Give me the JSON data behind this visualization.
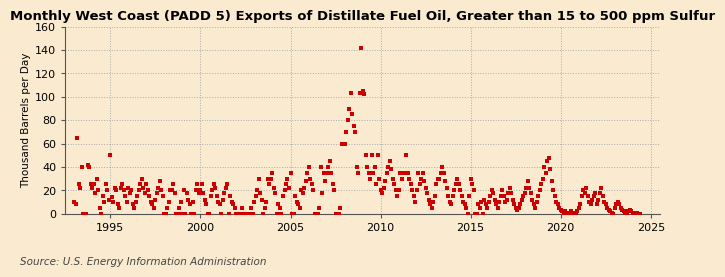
{
  "title": "Monthly West Coast (PADD 5) Exports of Distillate Fuel Oil, Greater than 15 to 500 ppm Sulfur",
  "ylabel": "Thousand Barrels per Day",
  "source": "Source: U.S. Energy Information Administration",
  "background_color": "#faebd0",
  "marker_color": "#cc0000",
  "marker": "s",
  "marker_size": 3.5,
  "xlim": [
    1992.5,
    2025.5
  ],
  "ylim": [
    0,
    160
  ],
  "yticks": [
    0,
    20,
    40,
    60,
    80,
    100,
    120,
    140,
    160
  ],
  "xticks": [
    1995,
    2000,
    2005,
    2010,
    2015,
    2020,
    2025
  ],
  "grid_color": "#aaaaaa",
  "grid_style": ":",
  "title_fontsize": 9.5,
  "label_fontsize": 7.5,
  "tick_fontsize": 8,
  "source_fontsize": 7.5,
  "data_points": [
    [
      1993.0,
      10
    ],
    [
      1993.083,
      8
    ],
    [
      1993.167,
      65
    ],
    [
      1993.25,
      25
    ],
    [
      1993.333,
      22
    ],
    [
      1993.417,
      40
    ],
    [
      1993.5,
      0
    ],
    [
      1993.583,
      0
    ],
    [
      1993.667,
      0
    ],
    [
      1993.75,
      42
    ],
    [
      1993.833,
      40
    ],
    [
      1993.917,
      25
    ],
    [
      1994.0,
      22
    ],
    [
      1994.083,
      25
    ],
    [
      1994.167,
      18
    ],
    [
      1994.25,
      30
    ],
    [
      1994.333,
      20
    ],
    [
      1994.417,
      5
    ],
    [
      1994.5,
      0
    ],
    [
      1994.583,
      15
    ],
    [
      1994.667,
      10
    ],
    [
      1994.75,
      25
    ],
    [
      1994.833,
      20
    ],
    [
      1994.917,
      12
    ],
    [
      1995.0,
      50
    ],
    [
      1995.083,
      14
    ],
    [
      1995.167,
      10
    ],
    [
      1995.25,
      22
    ],
    [
      1995.333,
      20
    ],
    [
      1995.417,
      8
    ],
    [
      1995.5,
      5
    ],
    [
      1995.583,
      22
    ],
    [
      1995.667,
      25
    ],
    [
      1995.75,
      20
    ],
    [
      1995.833,
      15
    ],
    [
      1995.917,
      10
    ],
    [
      1996.0,
      22
    ],
    [
      1996.083,
      18
    ],
    [
      1996.167,
      20
    ],
    [
      1996.25,
      8
    ],
    [
      1996.333,
      5
    ],
    [
      1996.417,
      10
    ],
    [
      1996.5,
      15
    ],
    [
      1996.583,
      20
    ],
    [
      1996.667,
      25
    ],
    [
      1996.75,
      30
    ],
    [
      1996.833,
      22
    ],
    [
      1996.917,
      18
    ],
    [
      1997.0,
      25
    ],
    [
      1997.083,
      20
    ],
    [
      1997.167,
      15
    ],
    [
      1997.25,
      10
    ],
    [
      1997.333,
      8
    ],
    [
      1997.417,
      5
    ],
    [
      1997.5,
      12
    ],
    [
      1997.583,
      18
    ],
    [
      1997.667,
      22
    ],
    [
      1997.75,
      28
    ],
    [
      1997.833,
      20
    ],
    [
      1997.917,
      15
    ],
    [
      1998.0,
      0
    ],
    [
      1998.083,
      0
    ],
    [
      1998.167,
      5
    ],
    [
      1998.25,
      10
    ],
    [
      1998.333,
      20
    ],
    [
      1998.417,
      20
    ],
    [
      1998.5,
      25
    ],
    [
      1998.583,
      18
    ],
    [
      1998.667,
      0
    ],
    [
      1998.75,
      0
    ],
    [
      1998.833,
      5
    ],
    [
      1998.917,
      10
    ],
    [
      1999.0,
      0
    ],
    [
      1999.083,
      20
    ],
    [
      1999.167,
      0
    ],
    [
      1999.25,
      18
    ],
    [
      1999.333,
      12
    ],
    [
      1999.417,
      8
    ],
    [
      1999.5,
      0
    ],
    [
      1999.583,
      10
    ],
    [
      1999.667,
      0
    ],
    [
      1999.75,
      20
    ],
    [
      1999.833,
      25
    ],
    [
      1999.917,
      18
    ],
    [
      2000.0,
      20
    ],
    [
      2000.083,
      25
    ],
    [
      2000.167,
      18
    ],
    [
      2000.25,
      12
    ],
    [
      2000.333,
      8
    ],
    [
      2000.417,
      0
    ],
    [
      2000.5,
      0
    ],
    [
      2000.583,
      15
    ],
    [
      2000.667,
      20
    ],
    [
      2000.75,
      25
    ],
    [
      2000.833,
      22
    ],
    [
      2000.917,
      15
    ],
    [
      2001.0,
      10
    ],
    [
      2001.083,
      8
    ],
    [
      2001.167,
      0
    ],
    [
      2001.25,
      12
    ],
    [
      2001.333,
      18
    ],
    [
      2001.417,
      22
    ],
    [
      2001.5,
      25
    ],
    [
      2001.583,
      0
    ],
    [
      2001.667,
      15
    ],
    [
      2001.75,
      10
    ],
    [
      2001.833,
      8
    ],
    [
      2001.917,
      5
    ],
    [
      2002.0,
      0
    ],
    [
      2002.083,
      0
    ],
    [
      2002.167,
      0
    ],
    [
      2002.25,
      0
    ],
    [
      2002.333,
      5
    ],
    [
      2002.417,
      0
    ],
    [
      2002.5,
      0
    ],
    [
      2002.583,
      0
    ],
    [
      2002.667,
      0
    ],
    [
      2002.75,
      0
    ],
    [
      2002.833,
      5
    ],
    [
      2002.917,
      0
    ],
    [
      2003.0,
      10
    ],
    [
      2003.083,
      15
    ],
    [
      2003.167,
      20
    ],
    [
      2003.25,
      30
    ],
    [
      2003.333,
      18
    ],
    [
      2003.417,
      12
    ],
    [
      2003.5,
      0
    ],
    [
      2003.583,
      5
    ],
    [
      2003.667,
      10
    ],
    [
      2003.75,
      30
    ],
    [
      2003.833,
      25
    ],
    [
      2003.917,
      30
    ],
    [
      2004.0,
      35
    ],
    [
      2004.083,
      22
    ],
    [
      2004.167,
      18
    ],
    [
      2004.25,
      0
    ],
    [
      2004.333,
      8
    ],
    [
      2004.417,
      5
    ],
    [
      2004.5,
      0
    ],
    [
      2004.583,
      15
    ],
    [
      2004.667,
      20
    ],
    [
      2004.75,
      25
    ],
    [
      2004.833,
      30
    ],
    [
      2004.917,
      22
    ],
    [
      2005.0,
      35
    ],
    [
      2005.083,
      0
    ],
    [
      2005.167,
      0
    ],
    [
      2005.25,
      15
    ],
    [
      2005.333,
      10
    ],
    [
      2005.417,
      8
    ],
    [
      2005.5,
      5
    ],
    [
      2005.583,
      20
    ],
    [
      2005.667,
      18
    ],
    [
      2005.75,
      22
    ],
    [
      2005.833,
      28
    ],
    [
      2005.917,
      35
    ],
    [
      2006.0,
      40
    ],
    [
      2006.083,
      30
    ],
    [
      2006.167,
      25
    ],
    [
      2006.25,
      20
    ],
    [
      2006.333,
      0
    ],
    [
      2006.417,
      0
    ],
    [
      2006.5,
      0
    ],
    [
      2006.583,
      5
    ],
    [
      2006.667,
      40
    ],
    [
      2006.75,
      18
    ],
    [
      2006.833,
      35
    ],
    [
      2006.917,
      28
    ],
    [
      2007.0,
      35
    ],
    [
      2007.083,
      40
    ],
    [
      2007.167,
      45
    ],
    [
      2007.25,
      35
    ],
    [
      2007.333,
      25
    ],
    [
      2007.417,
      20
    ],
    [
      2007.5,
      0
    ],
    [
      2007.583,
      0
    ],
    [
      2007.667,
      0
    ],
    [
      2007.75,
      5
    ],
    [
      2007.833,
      60
    ],
    [
      2007.917,
      60
    ],
    [
      2008.0,
      60
    ],
    [
      2008.083,
      70
    ],
    [
      2008.167,
      80
    ],
    [
      2008.25,
      90
    ],
    [
      2008.333,
      103
    ],
    [
      2008.417,
      85
    ],
    [
      2008.5,
      75
    ],
    [
      2008.583,
      70
    ],
    [
      2008.667,
      40
    ],
    [
      2008.75,
      35
    ],
    [
      2008.833,
      103
    ],
    [
      2008.917,
      142
    ],
    [
      2009.0,
      105
    ],
    [
      2009.083,
      102
    ],
    [
      2009.167,
      50
    ],
    [
      2009.25,
      40
    ],
    [
      2009.333,
      35
    ],
    [
      2009.417,
      30
    ],
    [
      2009.5,
      50
    ],
    [
      2009.583,
      35
    ],
    [
      2009.667,
      40
    ],
    [
      2009.75,
      25
    ],
    [
      2009.833,
      50
    ],
    [
      2009.917,
      30
    ],
    [
      2010.0,
      20
    ],
    [
      2010.083,
      18
    ],
    [
      2010.167,
      22
    ],
    [
      2010.25,
      28
    ],
    [
      2010.333,
      35
    ],
    [
      2010.417,
      40
    ],
    [
      2010.5,
      45
    ],
    [
      2010.583,
      38
    ],
    [
      2010.667,
      30
    ],
    [
      2010.75,
      25
    ],
    [
      2010.833,
      20
    ],
    [
      2010.917,
      15
    ],
    [
      2011.0,
      20
    ],
    [
      2011.083,
      35
    ],
    [
      2011.167,
      30
    ],
    [
      2011.25,
      35
    ],
    [
      2011.333,
      35
    ],
    [
      2011.417,
      50
    ],
    [
      2011.5,
      35
    ],
    [
      2011.583,
      30
    ],
    [
      2011.667,
      25
    ],
    [
      2011.75,
      20
    ],
    [
      2011.833,
      15
    ],
    [
      2011.917,
      10
    ],
    [
      2012.0,
      20
    ],
    [
      2012.083,
      35
    ],
    [
      2012.167,
      25
    ],
    [
      2012.25,
      30
    ],
    [
      2012.333,
      35
    ],
    [
      2012.417,
      28
    ],
    [
      2012.5,
      22
    ],
    [
      2012.583,
      18
    ],
    [
      2012.667,
      12
    ],
    [
      2012.75,
      8
    ],
    [
      2012.833,
      5
    ],
    [
      2012.917,
      10
    ],
    [
      2013.0,
      15
    ],
    [
      2013.083,
      25
    ],
    [
      2013.167,
      30
    ],
    [
      2013.25,
      30
    ],
    [
      2013.333,
      35
    ],
    [
      2013.417,
      40
    ],
    [
      2013.5,
      35
    ],
    [
      2013.583,
      28
    ],
    [
      2013.667,
      22
    ],
    [
      2013.75,
      15
    ],
    [
      2013.833,
      10
    ],
    [
      2013.917,
      8
    ],
    [
      2014.0,
      15
    ],
    [
      2014.083,
      20
    ],
    [
      2014.167,
      25
    ],
    [
      2014.25,
      30
    ],
    [
      2014.333,
      25
    ],
    [
      2014.417,
      20
    ],
    [
      2014.5,
      15
    ],
    [
      2014.583,
      10
    ],
    [
      2014.667,
      8
    ],
    [
      2014.75,
      5
    ],
    [
      2014.833,
      0
    ],
    [
      2014.917,
      15
    ],
    [
      2015.0,
      30
    ],
    [
      2015.083,
      25
    ],
    [
      2015.167,
      20
    ],
    [
      2015.25,
      0
    ],
    [
      2015.333,
      0
    ],
    [
      2015.417,
      8
    ],
    [
      2015.5,
      5
    ],
    [
      2015.583,
      10
    ],
    [
      2015.667,
      0
    ],
    [
      2015.75,
      12
    ],
    [
      2015.833,
      8
    ],
    [
      2015.917,
      5
    ],
    [
      2016.0,
      10
    ],
    [
      2016.083,
      15
    ],
    [
      2016.167,
      20
    ],
    [
      2016.25,
      18
    ],
    [
      2016.333,
      12
    ],
    [
      2016.417,
      8
    ],
    [
      2016.5,
      5
    ],
    [
      2016.583,
      10
    ],
    [
      2016.667,
      15
    ],
    [
      2016.75,
      20
    ],
    [
      2016.833,
      15
    ],
    [
      2016.917,
      10
    ],
    [
      2017.0,
      12
    ],
    [
      2017.083,
      18
    ],
    [
      2017.167,
      22
    ],
    [
      2017.25,
      18
    ],
    [
      2017.333,
      12
    ],
    [
      2017.417,
      8
    ],
    [
      2017.5,
      5
    ],
    [
      2017.583,
      3
    ],
    [
      2017.667,
      5
    ],
    [
      2017.75,
      8
    ],
    [
      2017.833,
      12
    ],
    [
      2017.917,
      15
    ],
    [
      2018.0,
      18
    ],
    [
      2018.083,
      22
    ],
    [
      2018.167,
      28
    ],
    [
      2018.25,
      22
    ],
    [
      2018.333,
      18
    ],
    [
      2018.417,
      12
    ],
    [
      2018.5,
      8
    ],
    [
      2018.583,
      5
    ],
    [
      2018.667,
      10
    ],
    [
      2018.75,
      15
    ],
    [
      2018.833,
      20
    ],
    [
      2018.917,
      25
    ],
    [
      2019.0,
      30
    ],
    [
      2019.083,
      40
    ],
    [
      2019.167,
      35
    ],
    [
      2019.25,
      45
    ],
    [
      2019.333,
      48
    ],
    [
      2019.417,
      38
    ],
    [
      2019.5,
      28
    ],
    [
      2019.583,
      20
    ],
    [
      2019.667,
      15
    ],
    [
      2019.75,
      10
    ],
    [
      2019.833,
      8
    ],
    [
      2019.917,
      5
    ],
    [
      2020.0,
      3
    ],
    [
      2020.083,
      2
    ],
    [
      2020.167,
      1
    ],
    [
      2020.25,
      2
    ],
    [
      2020.333,
      1
    ],
    [
      2020.417,
      0
    ],
    [
      2020.5,
      1
    ],
    [
      2020.583,
      2
    ],
    [
      2020.667,
      1
    ],
    [
      2020.75,
      0
    ],
    [
      2020.833,
      1
    ],
    [
      2020.917,
      2
    ],
    [
      2021.0,
      5
    ],
    [
      2021.083,
      8
    ],
    [
      2021.167,
      15
    ],
    [
      2021.25,
      20
    ],
    [
      2021.333,
      18
    ],
    [
      2021.417,
      22
    ],
    [
      2021.5,
      15
    ],
    [
      2021.583,
      10
    ],
    [
      2021.667,
      8
    ],
    [
      2021.75,
      12
    ],
    [
      2021.833,
      15
    ],
    [
      2021.917,
      18
    ],
    [
      2022.0,
      8
    ],
    [
      2022.083,
      12
    ],
    [
      2022.167,
      18
    ],
    [
      2022.25,
      22
    ],
    [
      2022.333,
      15
    ],
    [
      2022.417,
      10
    ],
    [
      2022.5,
      8
    ],
    [
      2022.583,
      5
    ],
    [
      2022.667,
      3
    ],
    [
      2022.75,
      2
    ],
    [
      2022.833,
      1
    ],
    [
      2022.917,
      0
    ],
    [
      2023.0,
      5
    ],
    [
      2023.083,
      8
    ],
    [
      2023.167,
      10
    ],
    [
      2023.25,
      8
    ],
    [
      2023.333,
      5
    ],
    [
      2023.417,
      3
    ],
    [
      2023.5,
      2
    ],
    [
      2023.583,
      1
    ],
    [
      2023.667,
      1
    ],
    [
      2023.75,
      2
    ],
    [
      2023.833,
      3
    ],
    [
      2023.917,
      2
    ],
    [
      2024.0,
      1
    ],
    [
      2024.083,
      1
    ],
    [
      2024.167,
      0
    ],
    [
      2024.25,
      1
    ],
    [
      2024.333,
      0
    ],
    [
      2024.417,
      0
    ]
  ]
}
